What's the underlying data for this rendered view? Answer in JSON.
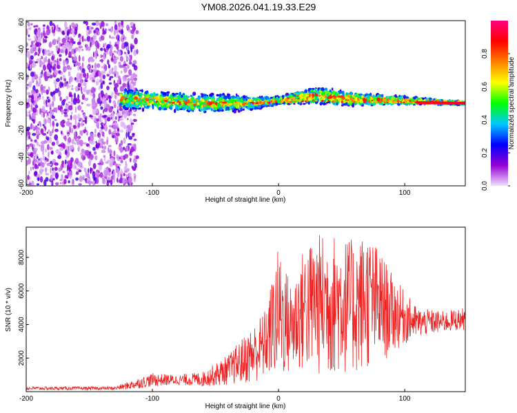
{
  "title": "YM08.2026.041.19.33.E29",
  "chart_data": [
    {
      "type": "heatmap",
      "title": "",
      "xlabel": "Height of straight line (km)",
      "ylabel": "Frequency (Hz)",
      "xlim": [
        -200,
        148
      ],
      "ylim": [
        -61,
        61
      ],
      "xticks": [
        -200,
        -100,
        0,
        100
      ],
      "yticks": [
        -60,
        -40,
        -20,
        0,
        20,
        40,
        60
      ],
      "colorbar": {
        "label": "Normalized spectral amplitude",
        "range": [
          0,
          1
        ],
        "ticks": [
          "0.0",
          "0.2",
          "0.4",
          "0.6",
          "0.8"
        ],
        "colors": [
          "#f0e0ff",
          "#9400d3",
          "#0000ff",
          "#00c8ff",
          "#00ff00",
          "#ffff00",
          "#ff8000",
          "#ff0000",
          "#ff0080"
        ]
      },
      "regions": [
        {
          "name": "noise",
          "x_range": [
            -200,
            -112
          ],
          "freq_range": [
            -60,
            60
          ],
          "amplitude": [
            0.05,
            0.2
          ]
        },
        {
          "name": "signal band",
          "x_range": [
            -125,
            148
          ],
          "freq_center": [
            [
              -120,
              3
            ],
            [
              -60,
              0
            ],
            [
              -20,
              0
            ],
            [
              0,
              2
            ],
            [
              30,
              6
            ],
            [
              60,
              3
            ],
            [
              100,
              2
            ],
            [
              148,
              0
            ]
          ],
          "band_halfwidth_hz": [
            [
              -120,
              8
            ],
            [
              -40,
              7
            ],
            [
              0,
              3
            ],
            [
              30,
              7
            ],
            [
              80,
              4
            ],
            [
              148,
              1
            ]
          ],
          "amplitude": [
            0.2,
            0.95
          ]
        }
      ]
    },
    {
      "type": "line",
      "title": "",
      "xlabel": "Height of straight line (km)",
      "ylabel": "SNR (10 * v/v)",
      "xlim": [
        -200,
        148
      ],
      "ylim": [
        0,
        9800
      ],
      "xticks": [
        -200,
        -100,
        0,
        100
      ],
      "yticks": [
        2000,
        4000,
        6000,
        8000
      ],
      "color": "#ee2222",
      "series": [
        {
          "name": "SNR",
          "envelope": {
            "x": [
              -200,
              -130,
              -115,
              -100,
              -80,
              -60,
              -40,
              -20,
              -10,
              0,
              10,
              20,
              30,
              40,
              50,
              60,
              70,
              80,
              90,
              100,
              110,
              120,
              130,
              148
            ],
            "low": [
              100,
              100,
              150,
              300,
              400,
              300,
              400,
              500,
              800,
              600,
              900,
              1000,
              900,
              700,
              1000,
              900,
              1200,
              1500,
              2200,
              2800,
              3200,
              3400,
              3500,
              3700
            ],
            "high": [
              300,
              300,
              700,
              1100,
              1000,
              1200,
              2200,
              4000,
              5000,
              8700,
              6500,
              8600,
              9400,
              9500,
              9300,
              9000,
              9600,
              8500,
              7000,
              6000,
              5000,
              4900,
              4800,
              5000
            ]
          }
        }
      ]
    }
  ]
}
